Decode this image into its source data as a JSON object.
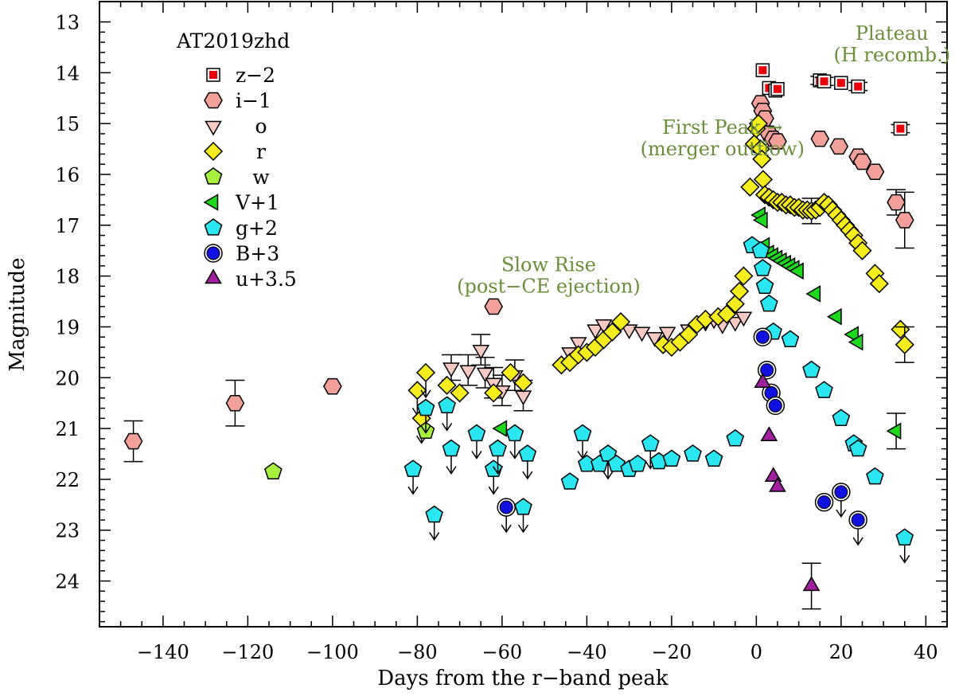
{
  "chart_data": {
    "type": "scatter",
    "title": "AT2019zhd",
    "xlabel": "Days from the r−band peak",
    "ylabel": "Magnitude",
    "xlim": [
      -155,
      45
    ],
    "ylim": [
      24.9,
      12.6
    ],
    "y_inverted": true,
    "x_ticks": [
      -140,
      -120,
      -100,
      -80,
      -60,
      -40,
      -20,
      0,
      20,
      40
    ],
    "y_ticks": [
      13,
      14,
      15,
      16,
      17,
      18,
      19,
      20,
      21,
      22,
      23,
      24
    ],
    "legend_position": "top-left",
    "colors": {
      "z": "#e8000b",
      "i": "#f4a09a",
      "o": "#f7c9c3",
      "r": "#f4ec1c",
      "w": "#a8f040",
      "V": "#1ed81e",
      "g": "#29e6f0",
      "B": "#1010e0",
      "u": "#a020a0",
      "annotation": "#6b8e3a"
    },
    "series": [
      {
        "name": "z−2",
        "key": "z",
        "marker": "square-in-square",
        "points": [
          {
            "x": 1.5,
            "y": 13.95
          },
          {
            "x": 3,
            "y": 14.3
          },
          {
            "x": 4.5,
            "y": 14.35
          },
          {
            "x": 5,
            "y": 14.32
          },
          {
            "x": 15,
            "y": 14.15,
            "e": 0.08
          },
          {
            "x": 16,
            "y": 14.17,
            "e": 0.08
          },
          {
            "x": 20,
            "y": 14.2
          },
          {
            "x": 24,
            "y": 14.27,
            "e": 0.08
          },
          {
            "x": 34,
            "y": 15.1,
            "e": 0.08
          }
        ]
      },
      {
        "name": "i−1",
        "key": "i",
        "marker": "hexagon",
        "points": [
          {
            "x": -147,
            "y": 21.25,
            "e": 0.4
          },
          {
            "x": -123,
            "y": 20.5,
            "e": 0.45
          },
          {
            "x": -100,
            "y": 20.17
          },
          {
            "x": -62,
            "y": 18.6
          },
          {
            "x": 1,
            "y": 14.6
          },
          {
            "x": 1.5,
            "y": 14.75
          },
          {
            "x": 2,
            "y": 14.9
          },
          {
            "x": 3,
            "y": 15.2
          },
          {
            "x": 4,
            "y": 15.3
          },
          {
            "x": 5,
            "y": 15.35
          },
          {
            "x": 15,
            "y": 15.3
          },
          {
            "x": 19.5,
            "y": 15.45
          },
          {
            "x": 24,
            "y": 15.65
          },
          {
            "x": 25,
            "y": 15.75
          },
          {
            "x": 28,
            "y": 15.95
          },
          {
            "x": 33,
            "y": 16.55,
            "e": 0.25
          },
          {
            "x": 35,
            "y": 16.9,
            "e": 0.55
          }
        ]
      },
      {
        "name": "o",
        "key": "o",
        "marker": "triangle-down",
        "points": [
          {
            "x": -72,
            "y": 19.8,
            "e": 0.25
          },
          {
            "x": -68,
            "y": 19.85,
            "e": 0.3
          },
          {
            "x": -65,
            "y": 19.45,
            "e": 0.3
          },
          {
            "x": -64,
            "y": 19.9,
            "e": 0.3
          },
          {
            "x": -62,
            "y": 20.1,
            "e": 0.3
          },
          {
            "x": -60,
            "y": 20.25,
            "e": 0.3
          },
          {
            "x": -57,
            "y": 19.95,
            "e": 0.3
          },
          {
            "x": -55,
            "y": 20.35,
            "e": 0.3
          },
          {
            "x": -44,
            "y": 19.5
          },
          {
            "x": -42,
            "y": 19.3
          },
          {
            "x": -38,
            "y": 19.05
          },
          {
            "x": -36,
            "y": 18.95
          },
          {
            "x": -30,
            "y": 19.05
          },
          {
            "x": -27,
            "y": 19.1
          },
          {
            "x": -24,
            "y": 19.2
          },
          {
            "x": -21,
            "y": 19.1
          },
          {
            "x": -16,
            "y": 19.05
          },
          {
            "x": -12,
            "y": 18.9
          },
          {
            "x": -10,
            "y": 18.85
          },
          {
            "x": -8,
            "y": 18.95
          },
          {
            "x": -5,
            "y": 18.9
          },
          {
            "x": -3,
            "y": 18.8
          }
        ]
      },
      {
        "name": "r",
        "key": "r",
        "marker": "diamond",
        "points": [
          {
            "x": -80,
            "y": 20.25,
            "upper": true
          },
          {
            "x": -79,
            "y": 20.8,
            "upper": true
          },
          {
            "x": -78,
            "y": 19.9,
            "upper": true
          },
          {
            "x": -73,
            "y": 20.15
          },
          {
            "x": -70,
            "y": 20.3
          },
          {
            "x": -62,
            "y": 20.3
          },
          {
            "x": -58,
            "y": 19.9
          },
          {
            "x": -55,
            "y": 20.1
          },
          {
            "x": -46,
            "y": 19.75
          },
          {
            "x": -44,
            "y": 19.7
          },
          {
            "x": -42,
            "y": 19.55
          },
          {
            "x": -40,
            "y": 19.5
          },
          {
            "x": -38,
            "y": 19.4
          },
          {
            "x": -36,
            "y": 19.25
          },
          {
            "x": -34,
            "y": 19.1
          },
          {
            "x": -32,
            "y": 18.9
          },
          {
            "x": -22,
            "y": 19.35
          },
          {
            "x": -20,
            "y": 19.4
          },
          {
            "x": -18,
            "y": 19.3
          },
          {
            "x": -16,
            "y": 19.15
          },
          {
            "x": -14,
            "y": 18.95
          },
          {
            "x": -12,
            "y": 18.85
          },
          {
            "x": -9,
            "y": 18.8
          },
          {
            "x": -7,
            "y": 18.75
          },
          {
            "x": -5,
            "y": 18.55
          },
          {
            "x": -4,
            "y": 18.3
          },
          {
            "x": -3,
            "y": 18.0
          },
          {
            "x": -1.5,
            "y": 16.25
          },
          {
            "x": -0.5,
            "y": 15.4
          },
          {
            "x": 0,
            "y": 15.1
          },
          {
            "x": 0.5,
            "y": 15.0
          },
          {
            "x": 1,
            "y": 15.5
          },
          {
            "x": 1.3,
            "y": 15.7
          },
          {
            "x": 1.6,
            "y": 16.1
          },
          {
            "x": 2,
            "y": 16.4
          },
          {
            "x": 3,
            "y": 16.45
          },
          {
            "x": 4,
            "y": 16.5
          },
          {
            "x": 5,
            "y": 16.55
          },
          {
            "x": 6,
            "y": 16.55
          },
          {
            "x": 7,
            "y": 16.6
          },
          {
            "x": 8,
            "y": 16.6
          },
          {
            "x": 9,
            "y": 16.65
          },
          {
            "x": 10,
            "y": 16.65
          },
          {
            "x": 11,
            "y": 16.7
          },
          {
            "x": 12,
            "y": 16.7
          },
          {
            "x": 13,
            "y": 16.72,
            "e": 0.25
          },
          {
            "x": 14,
            "y": 16.7
          },
          {
            "x": 15,
            "y": 16.65
          },
          {
            "x": 16,
            "y": 16.55
          },
          {
            "x": 17,
            "y": 16.6
          },
          {
            "x": 18,
            "y": 16.7
          },
          {
            "x": 19,
            "y": 16.8
          },
          {
            "x": 20,
            "y": 16.9
          },
          {
            "x": 21,
            "y": 17.0
          },
          {
            "x": 22,
            "y": 17.1
          },
          {
            "x": 23,
            "y": 17.2
          },
          {
            "x": 24,
            "y": 17.35
          },
          {
            "x": 25,
            "y": 17.5
          },
          {
            "x": 28,
            "y": 17.95
          },
          {
            "x": 29,
            "y": 18.15
          },
          {
            "x": 34,
            "y": 19.05
          },
          {
            "x": 35,
            "y": 19.35,
            "e": 0.35
          }
        ]
      },
      {
        "name": "w",
        "key": "w",
        "marker": "pentagon",
        "points": [
          {
            "x": -114,
            "y": 21.85
          },
          {
            "x": -78,
            "y": 21.05
          }
        ]
      },
      {
        "name": "V+1",
        "key": "V",
        "marker": "triangle-left",
        "points": [
          {
            "x": -60,
            "y": 21.0
          },
          {
            "x": 1,
            "y": 16.8
          },
          {
            "x": 1.5,
            "y": 16.9
          },
          {
            "x": 2,
            "y": 17.4
          },
          {
            "x": 3,
            "y": 17.55
          },
          {
            "x": 4,
            "y": 17.6
          },
          {
            "x": 5,
            "y": 17.65
          },
          {
            "x": 6,
            "y": 17.7
          },
          {
            "x": 7,
            "y": 17.75
          },
          {
            "x": 8,
            "y": 17.8
          },
          {
            "x": 9,
            "y": 17.85
          },
          {
            "x": 10,
            "y": 17.9
          },
          {
            "x": 14,
            "y": 18.35
          },
          {
            "x": 19,
            "y": 18.8
          },
          {
            "x": 23,
            "y": 19.15
          },
          {
            "x": 24,
            "y": 19.3
          },
          {
            "x": 33,
            "y": 21.05,
            "e": 0.35
          }
        ]
      },
      {
        "name": "g+2",
        "key": "g",
        "marker": "pentagon",
        "points": [
          {
            "x": -81,
            "y": 21.8,
            "upper": true
          },
          {
            "x": -78,
            "y": 20.6,
            "upper": true
          },
          {
            "x": -76,
            "y": 22.7,
            "upper": true
          },
          {
            "x": -73,
            "y": 20.55,
            "upper": true
          },
          {
            "x": -72,
            "y": 21.4,
            "upper": true
          },
          {
            "x": -66,
            "y": 21.1,
            "upper": true
          },
          {
            "x": -62,
            "y": 21.8,
            "upper": true
          },
          {
            "x": -61,
            "y": 21.4,
            "upper": true
          },
          {
            "x": -57,
            "y": 21.1,
            "upper": true
          },
          {
            "x": -55,
            "y": 22.55,
            "upper": true
          },
          {
            "x": -54,
            "y": 21.5,
            "upper": true
          },
          {
            "x": -44,
            "y": 22.05
          },
          {
            "x": -41,
            "y": 21.1,
            "upper": true
          },
          {
            "x": -40,
            "y": 21.7
          },
          {
            "x": -37,
            "y": 21.7
          },
          {
            "x": -35,
            "y": 21.5,
            "upper": true
          },
          {
            "x": -33,
            "y": 21.7
          },
          {
            "x": -30,
            "y": 21.8
          },
          {
            "x": -28,
            "y": 21.7
          },
          {
            "x": -25,
            "y": 21.3,
            "upper": true
          },
          {
            "x": -23,
            "y": 21.65
          },
          {
            "x": -20,
            "y": 21.6
          },
          {
            "x": -15,
            "y": 21.5
          },
          {
            "x": -10,
            "y": 21.6
          },
          {
            "x": -5,
            "y": 21.2
          },
          {
            "x": -1,
            "y": 17.4
          },
          {
            "x": 1,
            "y": 17.5
          },
          {
            "x": 1.5,
            "y": 17.85
          },
          {
            "x": 2,
            "y": 18.2
          },
          {
            "x": 3,
            "y": 18.55
          },
          {
            "x": 4,
            "y": 19.1
          },
          {
            "x": 8,
            "y": 19.25
          },
          {
            "x": 13,
            "y": 19.85
          },
          {
            "x": 16,
            "y": 20.25
          },
          {
            "x": 20,
            "y": 20.8
          },
          {
            "x": 23,
            "y": 21.3
          },
          {
            "x": 24,
            "y": 21.4
          },
          {
            "x": 28,
            "y": 21.95
          },
          {
            "x": 35,
            "y": 23.15,
            "upper": true
          }
        ]
      },
      {
        "name": "B+3",
        "key": "B",
        "marker": "circle-in-circle",
        "points": [
          {
            "x": -59,
            "y": 22.55,
            "upper": true
          },
          {
            "x": 1.5,
            "y": 19.2
          },
          {
            "x": 2.5,
            "y": 19.85
          },
          {
            "x": 3.5,
            "y": 20.3
          },
          {
            "x": 4.5,
            "y": 20.55
          },
          {
            "x": 16,
            "y": 22.45
          },
          {
            "x": 20,
            "y": 22.25,
            "upper": true
          },
          {
            "x": 24,
            "y": 22.8,
            "upper": true
          }
        ]
      },
      {
        "name": "u+3.5",
        "key": "u",
        "marker": "triangle-up",
        "points": [
          {
            "x": 1.5,
            "y": 20.1
          },
          {
            "x": 3,
            "y": 21.15
          },
          {
            "x": 4,
            "y": 21.95
          },
          {
            "x": 5,
            "y": 22.15
          },
          {
            "x": 13,
            "y": 24.1,
            "e": 0.45
          }
        ]
      }
    ],
    "annotations": [
      {
        "lines": [
          "Plateau",
          "(H recomb.)"
        ],
        "anchor_x": 32,
        "anchor_y": 13.35
      },
      {
        "lines": [
          "First Peak →",
          "(merger outflow)"
        ],
        "anchor_x": -8,
        "anchor_y": 15.2
      },
      {
        "lines": [
          "Slow Rise",
          "(post−CE ejection)"
        ],
        "anchor_x": -49,
        "anchor_y": 17.9
      }
    ]
  }
}
